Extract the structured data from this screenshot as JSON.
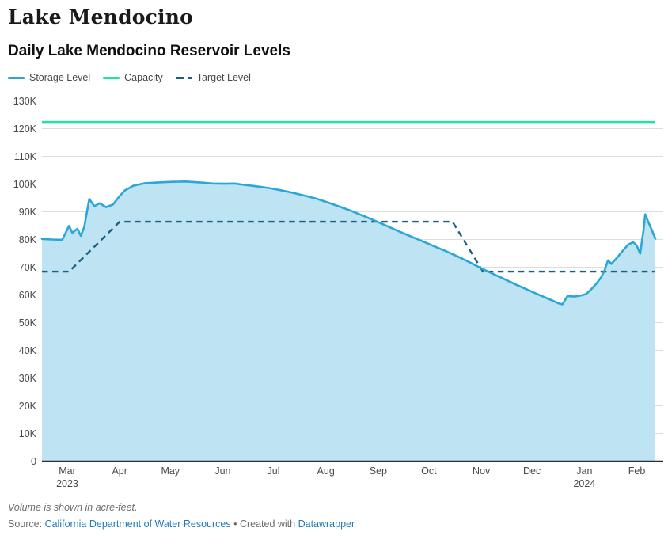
{
  "header": {
    "title": "Lake Mendocino",
    "subtitle": "Daily Lake Mendocino Reservoir Levels"
  },
  "legend": {
    "items": [
      {
        "name": "storage",
        "label": "Storage Level",
        "color": "#2BA7D7",
        "style": "solid"
      },
      {
        "name": "capacity",
        "label": "Capacity",
        "color": "#1FE3A4",
        "style": "solid"
      },
      {
        "name": "target",
        "label": "Target Level",
        "color": "#1A607F",
        "style": "dashed"
      }
    ]
  },
  "chart_data": {
    "type": "area",
    "title": "Daily Lake Mendocino Reservoir Levels",
    "unit": "acre-feet",
    "grid": true,
    "legend_position": "top",
    "colors": {
      "storage_line": "#2BA7D7",
      "storage_fill": "#BEE3F2",
      "capacity_line": "#1FE3A4",
      "target_line": "#1A607F",
      "gridline": "#dddddd",
      "baseline": "#2e2e2e",
      "tick_text": "#494949"
    },
    "y_axis": {
      "min": 0,
      "max": 130000,
      "tick_step": 10000,
      "tick_labels": [
        "0",
        "10K",
        "20K",
        "30K",
        "40K",
        "50K",
        "60K",
        "70K",
        "80K",
        "90K",
        "100K",
        "110K",
        "120K",
        "130K"
      ]
    },
    "x_axis": {
      "start": "2023-02-14",
      "end": "2024-02-12",
      "ticks": [
        {
          "label": "Mar",
          "year": "2023",
          "date": "2023-03-01"
        },
        {
          "label": "Apr",
          "year": "",
          "date": "2023-04-01"
        },
        {
          "label": "May",
          "year": "",
          "date": "2023-05-01"
        },
        {
          "label": "Jun",
          "year": "",
          "date": "2023-06-01"
        },
        {
          "label": "Jul",
          "year": "",
          "date": "2023-07-01"
        },
        {
          "label": "Aug",
          "year": "",
          "date": "2023-08-01"
        },
        {
          "label": "Sep",
          "year": "",
          "date": "2023-09-01"
        },
        {
          "label": "Oct",
          "year": "",
          "date": "2023-10-01"
        },
        {
          "label": "Nov",
          "year": "",
          "date": "2023-11-01"
        },
        {
          "label": "Dec",
          "year": "",
          "date": "2023-12-01"
        },
        {
          "label": "Jan",
          "year": "2024",
          "date": "2024-01-01"
        },
        {
          "label": "Feb",
          "year": "",
          "date": "2024-02-01"
        }
      ]
    },
    "series": [
      {
        "name": "Storage Level",
        "kind": "area-line",
        "points": [
          [
            "2023-02-14",
            80200
          ],
          [
            "2023-02-20",
            80000
          ],
          [
            "2023-02-26",
            79900
          ],
          [
            "2023-03-02",
            84900
          ],
          [
            "2023-03-04",
            82400
          ],
          [
            "2023-03-07",
            83900
          ],
          [
            "2023-03-09",
            81300
          ],
          [
            "2023-03-11",
            84500
          ],
          [
            "2023-03-14",
            94600
          ],
          [
            "2023-03-17",
            92000
          ],
          [
            "2023-03-20",
            93100
          ],
          [
            "2023-03-24",
            91700
          ],
          [
            "2023-03-28",
            92600
          ],
          [
            "2023-04-01",
            95700
          ],
          [
            "2023-04-04",
            97700
          ],
          [
            "2023-04-09",
            99400
          ],
          [
            "2023-04-16",
            100300
          ],
          [
            "2023-04-24",
            100600
          ],
          [
            "2023-05-02",
            100800
          ],
          [
            "2023-05-10",
            100900
          ],
          [
            "2023-05-18",
            100600
          ],
          [
            "2023-05-26",
            100200
          ],
          [
            "2023-06-02",
            100100
          ],
          [
            "2023-06-08",
            100200
          ],
          [
            "2023-06-14",
            99700
          ],
          [
            "2023-06-21",
            99200
          ],
          [
            "2023-06-28",
            98600
          ],
          [
            "2023-07-05",
            97800
          ],
          [
            "2023-07-12",
            96900
          ],
          [
            "2023-07-19",
            95900
          ],
          [
            "2023-07-26",
            94800
          ],
          [
            "2023-08-02",
            93400
          ],
          [
            "2023-08-09",
            91900
          ],
          [
            "2023-08-16",
            90300
          ],
          [
            "2023-08-23",
            88600
          ],
          [
            "2023-08-30",
            86800
          ],
          [
            "2023-09-06",
            84900
          ],
          [
            "2023-09-13",
            83000
          ],
          [
            "2023-09-20",
            81200
          ],
          [
            "2023-09-27",
            79400
          ],
          [
            "2023-10-04",
            77600
          ],
          [
            "2023-10-11",
            75800
          ],
          [
            "2023-10-18",
            73900
          ],
          [
            "2023-10-25",
            71800
          ],
          [
            "2023-11-01",
            69600
          ],
          [
            "2023-11-08",
            67600
          ],
          [
            "2023-11-15",
            65600
          ],
          [
            "2023-11-22",
            63600
          ],
          [
            "2023-11-29",
            61700
          ],
          [
            "2023-12-06",
            59800
          ],
          [
            "2023-12-13",
            58000
          ],
          [
            "2023-12-17",
            56900
          ],
          [
            "2023-12-19",
            56600
          ],
          [
            "2023-12-22",
            59600
          ],
          [
            "2023-12-26",
            59400
          ],
          [
            "2023-12-30",
            59800
          ],
          [
            "2024-01-02",
            60300
          ],
          [
            "2024-01-05",
            62000
          ],
          [
            "2024-01-08",
            64000
          ],
          [
            "2024-01-11",
            66400
          ],
          [
            "2024-01-13",
            69000
          ],
          [
            "2024-01-15",
            72500
          ],
          [
            "2024-01-17",
            71200
          ],
          [
            "2024-01-20",
            73200
          ],
          [
            "2024-01-24",
            76100
          ],
          [
            "2024-01-27",
            78200
          ],
          [
            "2024-01-30",
            79000
          ],
          [
            "2024-02-01",
            77800
          ],
          [
            "2024-02-03",
            74900
          ],
          [
            "2024-02-05",
            83500
          ],
          [
            "2024-02-06",
            89100
          ],
          [
            "2024-02-08",
            86100
          ],
          [
            "2024-02-10",
            83300
          ],
          [
            "2024-02-12",
            80300
          ]
        ]
      },
      {
        "name": "Capacity",
        "kind": "constant-line",
        "value": 122400
      },
      {
        "name": "Target Level",
        "kind": "dashed-line",
        "points": [
          [
            "2023-02-14",
            68400
          ],
          [
            "2023-03-02",
            68400
          ],
          [
            "2023-04-01",
            86400
          ],
          [
            "2023-10-15",
            86400
          ],
          [
            "2023-11-02",
            68400
          ],
          [
            "2024-02-12",
            68400
          ]
        ]
      }
    ]
  },
  "footer": {
    "note": "Volume is shown in acre-feet.",
    "source_prefix": "Source: ",
    "source_link": "California Department of Water Resources",
    "separator": " • ",
    "created_with": "Created with ",
    "datawrapper_label": "Datawrapper",
    "link_color": "#1F7BB6"
  }
}
